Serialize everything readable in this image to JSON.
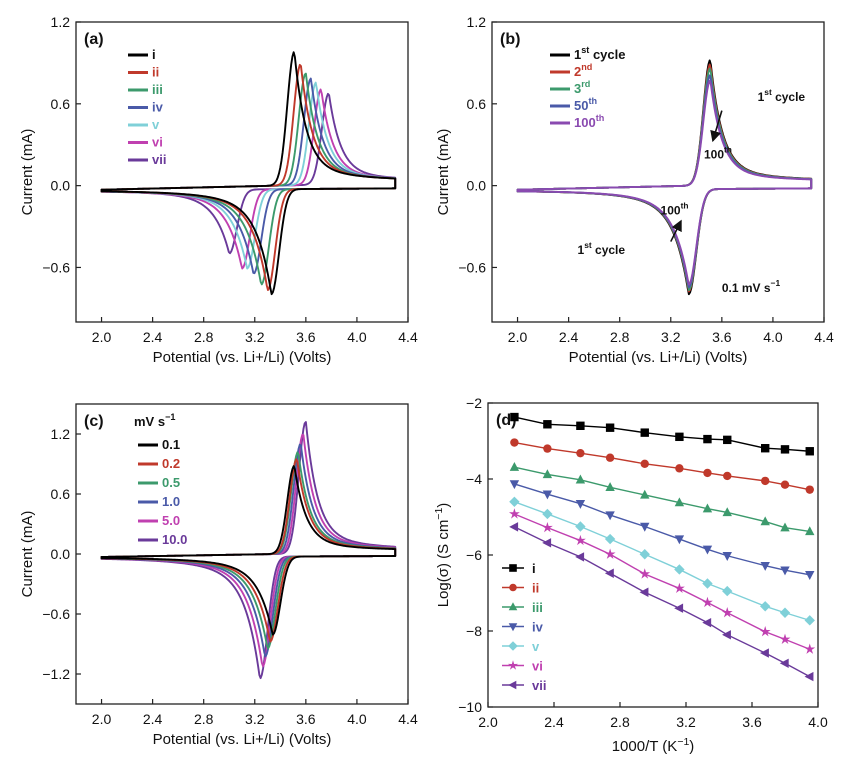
{
  "chart_data": [
    {
      "id": "a",
      "type": "line",
      "panel_label": "(a)",
      "xlabel": "Potential (vs. Li+/Li) (Volts)",
      "ylabel": "Current (mA)",
      "xlim": [
        1.8,
        4.4
      ],
      "ylim": [
        -1.0,
        1.2
      ],
      "xticks": [
        2.0,
        2.4,
        2.8,
        3.2,
        3.6,
        4.0,
        4.4
      ],
      "xtick_labels": [
        "2.0",
        "2.4",
        "2.8",
        "3.2",
        "3.6",
        "4.0",
        "4.4"
      ],
      "yticks": [
        -0.6,
        0.0,
        0.6,
        1.2
      ],
      "ytick_labels": [
        "−0.6",
        "0.0",
        "0.6",
        "1.2"
      ],
      "legend_position": "top-left",
      "cv": {
        "x_start": 2.0,
        "x_end": 4.3
      },
      "series": [
        {
          "name": "i",
          "color": "#000000",
          "ox_pos": 3.51,
          "ox_peak": 0.98,
          "red_pos": 3.33,
          "red_peak": -0.77
        },
        {
          "name": "ii",
          "color": "#c0392b",
          "ox_pos": 3.56,
          "ox_peak": 0.89,
          "red_pos": 3.3,
          "red_peak": -0.74
        },
        {
          "name": "iii",
          "color": "#3c9a6c",
          "ox_pos": 3.6,
          "ox_peak": 0.82,
          "red_pos": 3.25,
          "red_peak": -0.7
        },
        {
          "name": "iv",
          "color": "#4a5aa8",
          "ox_pos": 3.64,
          "ox_peak": 0.78,
          "red_pos": 3.19,
          "red_peak": -0.62
        },
        {
          "name": "v",
          "color": "#7fd0d8",
          "ox_pos": 3.68,
          "ox_peak": 0.75,
          "red_pos": 3.14,
          "red_peak": -0.58
        },
        {
          "name": "vi",
          "color": "#c040b0",
          "ox_pos": 3.72,
          "ox_peak": 0.7,
          "red_pos": 3.1,
          "red_peak": -0.58
        },
        {
          "name": "vii",
          "color": "#6a3a9a",
          "ox_pos": 3.78,
          "ox_peak": 0.67,
          "red_pos": 3.0,
          "red_peak": -0.47
        }
      ]
    },
    {
      "id": "b",
      "type": "line",
      "panel_label": "(b)",
      "xlabel": "Potential (vs. Li+/Li) (Volts)",
      "ylabel": "Current (mA)",
      "xlim": [
        1.8,
        4.4
      ],
      "ylim": [
        -1.0,
        1.2
      ],
      "xticks": [
        2.0,
        2.4,
        2.8,
        3.2,
        3.6,
        4.0,
        4.4
      ],
      "xtick_labels": [
        "2.0",
        "2.4",
        "2.8",
        "3.2",
        "3.6",
        "4.0",
        "4.4"
      ],
      "yticks": [
        -0.6,
        0.0,
        0.6,
        1.2
      ],
      "ytick_labels": [
        "−0.6",
        "0.0",
        "0.6",
        "1.2"
      ],
      "legend_position": "top-left",
      "cv": {
        "x_start": 2.0,
        "x_end": 4.3
      },
      "series": [
        {
          "name": "1st cycle",
          "legend_main": "1",
          "legend_sup": "st",
          "legend_tail": " cycle",
          "color": "#000000",
          "ox_pos": 3.51,
          "ox_peak": 0.92,
          "red_pos": 3.34,
          "red_peak": -0.77
        },
        {
          "name": "2nd",
          "legend_main": "2",
          "legend_sup": "nd",
          "legend_tail": "",
          "color": "#c0392b",
          "ox_pos": 3.51,
          "ox_peak": 0.89,
          "red_pos": 3.34,
          "red_peak": -0.75
        },
        {
          "name": "3rd",
          "legend_main": "3",
          "legend_sup": "rd",
          "legend_tail": "",
          "color": "#3c9a6c",
          "ox_pos": 3.51,
          "ox_peak": 0.86,
          "red_pos": 3.34,
          "red_peak": -0.74
        },
        {
          "name": "50th",
          "legend_main": "50",
          "legend_sup": "th",
          "legend_tail": "",
          "color": "#4a5aa8",
          "ox_pos": 3.51,
          "ox_peak": 0.81,
          "red_pos": 3.34,
          "red_peak": -0.72
        },
        {
          "name": "100th",
          "legend_main": "100",
          "legend_sup": "th",
          "legend_tail": "",
          "color": "#8a4ab0",
          "ox_pos": 3.51,
          "ox_peak": 0.77,
          "red_pos": 3.34,
          "red_peak": -0.7
        }
      ],
      "annotations": {
        "ox_cycle_main": "1",
        "ox_cycle_sup": "st",
        "ox_cycle_tail": " cycle",
        "ox_100_main": "100",
        "ox_100_sup": "th",
        "red_100_main": "100",
        "red_100_sup": "th",
        "red_cycle_main": "1",
        "red_cycle_sup": "st",
        "red_cycle_tail": " cycle",
        "rate_main": "0.1 mV s",
        "rate_sup": "−1"
      }
    },
    {
      "id": "c",
      "type": "line",
      "panel_label": "(c)",
      "xlabel": "Potential (vs. Li+/Li) (Volts)",
      "ylabel": "Current (mA)",
      "xlim": [
        1.8,
        4.4
      ],
      "ylim": [
        -1.5,
        1.5
      ],
      "xticks": [
        2.0,
        2.4,
        2.8,
        3.2,
        3.6,
        4.0,
        4.4
      ],
      "xtick_labels": [
        "2.0",
        "2.4",
        "2.8",
        "3.2",
        "3.6",
        "4.0",
        "4.4"
      ],
      "yticks": [
        -1.2,
        -0.6,
        0.0,
        0.6,
        1.2
      ],
      "ytick_labels": [
        "−1.2",
        "−0.6",
        "0.0",
        "0.6",
        "1.2"
      ],
      "legend_title_main": "mV s",
      "legend_title_sup": "−1",
      "legend_position": "top-left",
      "cv": {
        "x_start": 2.0,
        "x_end": 4.3
      },
      "series": [
        {
          "name": "0.1",
          "color": "#000000",
          "ox_pos": 3.51,
          "ox_peak": 0.88,
          "red_pos": 3.34,
          "red_peak": -0.78
        },
        {
          "name": "0.2",
          "color": "#c0392b",
          "ox_pos": 3.53,
          "ox_peak": 0.95,
          "red_pos": 3.32,
          "red_peak": -0.85
        },
        {
          "name": "0.5",
          "color": "#3c9a6c",
          "ox_pos": 3.54,
          "ox_peak": 1.02,
          "red_pos": 3.3,
          "red_peak": -0.92
        },
        {
          "name": "1.0",
          "color": "#4a5aa8",
          "ox_pos": 3.56,
          "ox_peak": 1.1,
          "red_pos": 3.28,
          "red_peak": -1.0
        },
        {
          "name": "5.0",
          "color": "#c040b0",
          "ox_pos": 3.58,
          "ox_peak": 1.2,
          "red_pos": 3.26,
          "red_peak": -1.1
        },
        {
          "name": "10.0",
          "color": "#6a3a9a",
          "ox_pos": 3.6,
          "ox_peak": 1.32,
          "red_pos": 3.24,
          "red_peak": -1.22
        }
      ]
    },
    {
      "id": "d",
      "type": "scatter",
      "panel_label": "(d)",
      "xlabel_main": "1000/T (K",
      "xlabel_sup": "−1",
      "xlabel_tail": ")",
      "ylabel_main": "Log(σ) (S cm",
      "ylabel_sup": "−1",
      "ylabel_tail": ")",
      "xlim": [
        2.0,
        4.0
      ],
      "ylim": [
        -10,
        -2
      ],
      "xticks": [
        2.0,
        2.4,
        2.8,
        3.2,
        3.6,
        4.0
      ],
      "xtick_labels": [
        "2.0",
        "2.4",
        "2.8",
        "3.2",
        "3.6",
        "4.0"
      ],
      "yticks": [
        -10,
        -8,
        -6,
        -4,
        -2
      ],
      "ytick_labels": [
        "−10",
        "−8",
        "−6",
        "−4",
        "−2"
      ],
      "legend_position": "bottom-left",
      "x": [
        2.16,
        2.36,
        2.56,
        2.74,
        2.95,
        3.16,
        3.33,
        3.45,
        3.68,
        3.8,
        3.95
      ],
      "series": [
        {
          "name": "i",
          "color": "#000000",
          "marker": "square",
          "values": [
            -2.37,
            -2.56,
            -2.6,
            -2.65,
            -2.78,
            -2.89,
            -2.95,
            -2.97,
            -3.19,
            -3.22,
            -3.27
          ]
        },
        {
          "name": "ii",
          "color": "#c0392b",
          "marker": "circle",
          "values": [
            -3.04,
            -3.2,
            -3.32,
            -3.44,
            -3.6,
            -3.72,
            -3.84,
            -3.92,
            -4.05,
            -4.15,
            -4.28
          ]
        },
        {
          "name": "iii",
          "color": "#3c9a6c",
          "marker": "triangle-up",
          "values": [
            -3.69,
            -3.88,
            -4.02,
            -4.22,
            -4.42,
            -4.62,
            -4.78,
            -4.88,
            -5.12,
            -5.28,
            -5.38
          ]
        },
        {
          "name": "iv",
          "color": "#4a5aa8",
          "marker": "triangle-down",
          "values": [
            -4.13,
            -4.4,
            -4.65,
            -4.95,
            -5.25,
            -5.58,
            -5.85,
            -6.02,
            -6.28,
            -6.4,
            -6.52
          ]
        },
        {
          "name": "v",
          "color": "#7fd0d8",
          "marker": "diamond",
          "values": [
            -4.6,
            -4.92,
            -5.25,
            -5.58,
            -5.98,
            -6.38,
            -6.75,
            -6.95,
            -7.35,
            -7.52,
            -7.72
          ]
        },
        {
          "name": "vi",
          "color": "#c040b0",
          "marker": "star",
          "values": [
            -4.92,
            -5.28,
            -5.62,
            -5.98,
            -6.5,
            -6.88,
            -7.25,
            -7.52,
            -8.02,
            -8.22,
            -8.48
          ]
        },
        {
          "name": "vii",
          "color": "#6a3a9a",
          "marker": "triangle-left",
          "values": [
            -5.26,
            -5.68,
            -6.05,
            -6.48,
            -6.98,
            -7.4,
            -7.78,
            -8.1,
            -8.58,
            -8.85,
            -9.2
          ]
        }
      ]
    }
  ]
}
